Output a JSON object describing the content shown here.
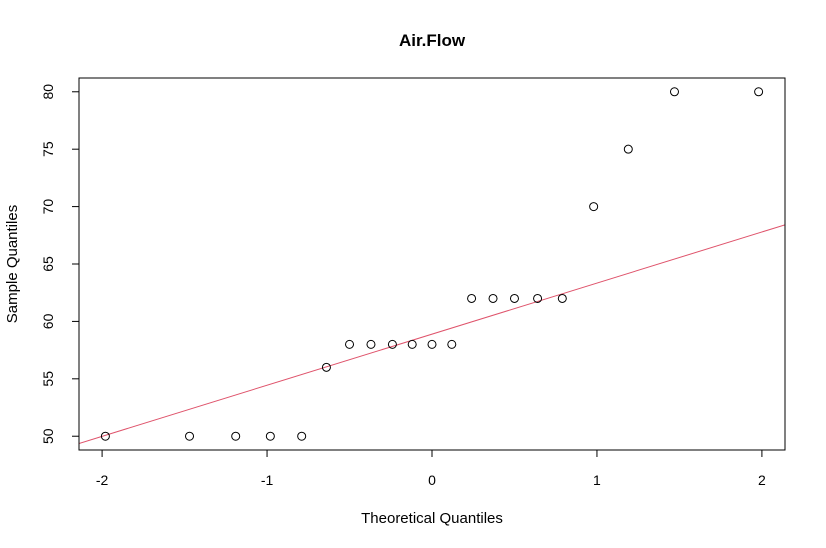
{
  "chart_data": {
    "type": "scatter",
    "title": "Air.Flow",
    "xlabel": "Theoretical Quantiles",
    "ylabel": "Sample Quantiles",
    "xlim": [
      -2.14,
      2.14
    ],
    "ylim": [
      48.8,
      81.2
    ],
    "xticks": [
      "-2",
      "-1",
      "0",
      "1",
      "2"
    ],
    "yticks": [
      "50",
      "55",
      "60",
      "65",
      "70",
      "75",
      "80"
    ],
    "grid": false,
    "legend": "none",
    "point_color": "#000000",
    "line_color": "#DF536B",
    "points": [
      {
        "x": -1.98,
        "y": 50
      },
      {
        "x": -1.47,
        "y": 50
      },
      {
        "x": -1.19,
        "y": 50
      },
      {
        "x": -0.98,
        "y": 50
      },
      {
        "x": -0.79,
        "y": 50
      },
      {
        "x": -0.64,
        "y": 56
      },
      {
        "x": -0.5,
        "y": 58
      },
      {
        "x": -0.37,
        "y": 58
      },
      {
        "x": -0.24,
        "y": 58
      },
      {
        "x": -0.12,
        "y": 58
      },
      {
        "x": 0.0,
        "y": 58
      },
      {
        "x": 0.12,
        "y": 58
      },
      {
        "x": 0.24,
        "y": 62
      },
      {
        "x": 0.37,
        "y": 62
      },
      {
        "x": 0.5,
        "y": 62
      },
      {
        "x": 0.64,
        "y": 62
      },
      {
        "x": 0.79,
        "y": 62
      },
      {
        "x": 0.98,
        "y": 70
      },
      {
        "x": 1.19,
        "y": 75
      },
      {
        "x": 1.47,
        "y": 80
      },
      {
        "x": 1.98,
        "y": 80
      }
    ],
    "reference_line": {
      "intercept": 58.89,
      "slope": 4.45
    }
  }
}
